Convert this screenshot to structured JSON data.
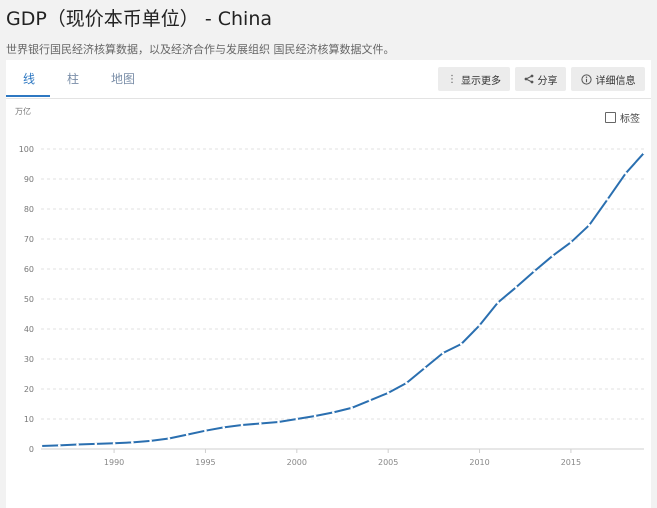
{
  "header": {
    "title": "GDP（现价本币单位） - China",
    "subtitle": "世界银行国民经济核算数据，以及经济合作与发展组织 国民经济核算数据文件。"
  },
  "tabs": [
    {
      "label": "线",
      "active": true
    },
    {
      "label": "柱",
      "active": false
    },
    {
      "label": "地图",
      "active": false
    }
  ],
  "toolbar": {
    "more_label": "显示更多",
    "share_label": "分享",
    "details_label": "详细信息"
  },
  "labels_toggle": {
    "label": "标签",
    "checked": false
  },
  "colors": {
    "line": "#2a6fb0",
    "active_tab": "#2e78c2"
  },
  "chart_data": {
    "type": "line",
    "ylabel": "万亿",
    "ylim": [
      0,
      100
    ],
    "yticks": [
      0,
      10,
      20,
      30,
      40,
      50,
      60,
      70,
      80,
      90,
      100
    ],
    "xlim": [
      1986,
      2019
    ],
    "xticks": [
      1990,
      1995,
      2000,
      2005,
      2010,
      2015
    ],
    "grid": true,
    "series": [
      {
        "x": [
          1986,
          1987,
          1988,
          1989,
          1990,
          1991,
          1992,
          1993,
          1994,
          1995,
          1996,
          1997,
          1998,
          1999,
          2000,
          2001,
          2002,
          2003,
          2004,
          2005,
          2006,
          2007,
          2008,
          2009,
          2010,
          2011,
          2012,
          2013,
          2014,
          2015,
          2016,
          2017,
          2018,
          2019
        ],
        "values": [
          1.0,
          1.2,
          1.5,
          1.7,
          1.9,
          2.2,
          2.7,
          3.5,
          4.8,
          6.1,
          7.2,
          8.0,
          8.5,
          9.0,
          10.0,
          11.0,
          12.2,
          13.7,
          16.2,
          18.7,
          22.0,
          27.0,
          32.0,
          35.0,
          41.2,
          48.8,
          53.9,
          59.3,
          64.4,
          68.9,
          74.6,
          83.2,
          91.9,
          98.7
        ]
      }
    ]
  }
}
